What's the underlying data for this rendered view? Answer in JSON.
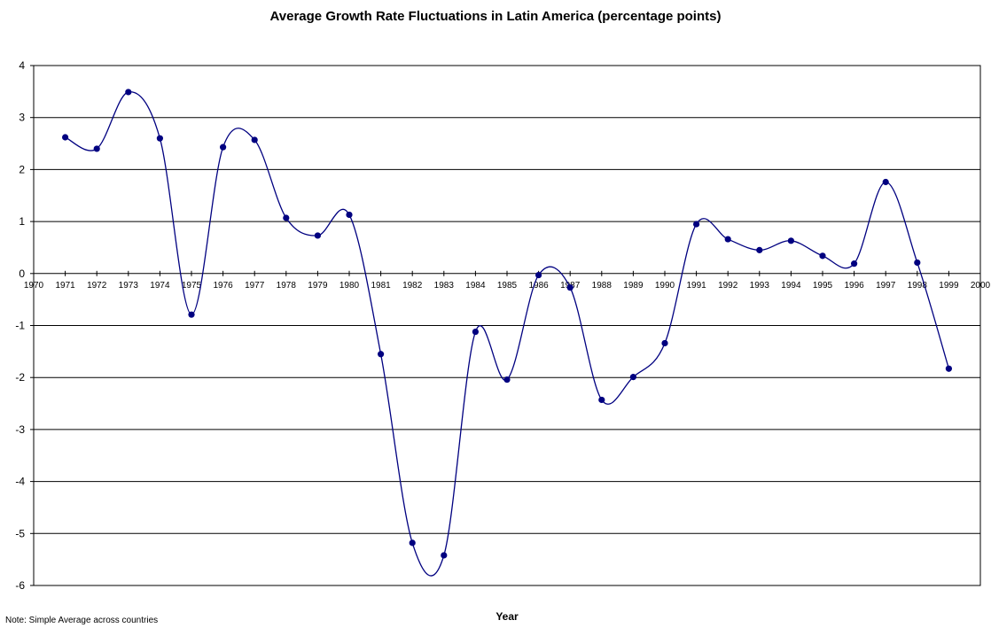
{
  "chart_data": {
    "type": "line",
    "title": "Average Growth Rate Fluctuations in Latin America (percentage points)",
    "xlabel": "Year",
    "ylabel": "",
    "note": "Note: Simple Average across countries",
    "xlim": [
      1970,
      2000
    ],
    "ylim": [
      -6,
      4
    ],
    "x_ticks": [
      1970,
      1971,
      1972,
      1973,
      1974,
      1975,
      1976,
      1977,
      1978,
      1979,
      1980,
      1981,
      1982,
      1983,
      1984,
      1985,
      1986,
      1987,
      1988,
      1989,
      1990,
      1991,
      1992,
      1993,
      1994,
      1995,
      1996,
      1997,
      1998,
      1999,
      2000
    ],
    "y_ticks": [
      4,
      3,
      2,
      1,
      0,
      -1,
      -2,
      -3,
      -4,
      -5,
      -6
    ],
    "grid": "horizontal",
    "smooth": true,
    "line_color": "#000080",
    "marker_color": "#000080",
    "series": [
      {
        "x": [
          1971,
          1972,
          1973,
          1974,
          1975,
          1976,
          1977,
          1978,
          1979,
          1980,
          1981,
          1982,
          1983,
          1984,
          1985,
          1986,
          1987,
          1988,
          1989,
          1990,
          1991,
          1992,
          1993,
          1994,
          1995,
          1996,
          1997,
          1998,
          1999
        ],
        "y": [
          2.62,
          2.4,
          3.49,
          2.6,
          -0.79,
          2.43,
          2.57,
          1.07,
          0.73,
          1.13,
          -1.55,
          -5.18,
          -5.42,
          -1.12,
          -2.04,
          -0.03,
          -0.27,
          -2.43,
          -1.99,
          -1.34,
          0.95,
          0.66,
          0.45,
          0.63,
          0.34,
          0.19,
          1.76,
          0.21,
          -1.83
        ]
      }
    ]
  }
}
